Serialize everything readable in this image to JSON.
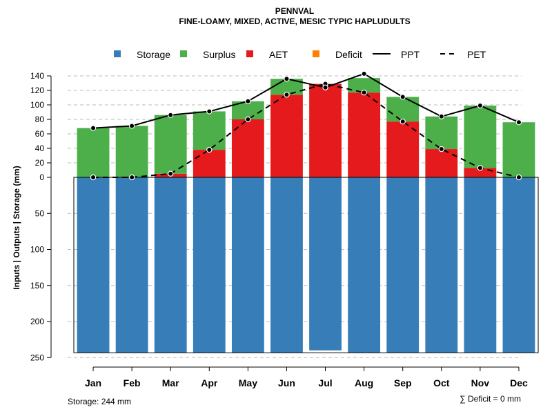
{
  "chart_data": {
    "type": "bar",
    "title": "PENNVAL",
    "subtitle": "FINE-LOAMY, MIXED, ACTIVE, MESIC TYPIC HAPLUDULTS",
    "ylabel": "Inputs | Outputs | Storage    (mm)",
    "categories": [
      "Jan",
      "Feb",
      "Mar",
      "Apr",
      "May",
      "Jun",
      "Jul",
      "Aug",
      "Sep",
      "Oct",
      "Nov",
      "Dec"
    ],
    "upper_ticks": [
      "140",
      "120",
      "100",
      "80",
      "60",
      "40",
      "20",
      "0"
    ],
    "upper_tick_values": [
      140,
      120,
      100,
      80,
      60,
      40,
      20,
      0
    ],
    "lower_ticks": [
      "50",
      "100",
      "150",
      "200",
      "250"
    ],
    "lower_tick_values": [
      50,
      100,
      150,
      200,
      250
    ],
    "upper_ylim": [
      0,
      140
    ],
    "lower_ylim": [
      0,
      250
    ],
    "colors": {
      "storage": "#377eb8",
      "surplus": "#4daf4a",
      "aet": "#e41a1c",
      "deficit": "#ff7f00",
      "ppt": "#000000",
      "pet": "#000000",
      "grid": "#bbbbbb"
    },
    "legend": {
      "storage": "Storage",
      "surplus": "Surplus",
      "aet": "AET",
      "deficit": "Deficit",
      "ppt": "PPT",
      "pet": "PET"
    },
    "series": [
      {
        "name": "Storage",
        "values": [
          244,
          244,
          244,
          244,
          244,
          244,
          240,
          244,
          244,
          244,
          244,
          244
        ]
      },
      {
        "name": "AET",
        "values": [
          0,
          0,
          5,
          38,
          80,
          114,
          129,
          117,
          77,
          39,
          13,
          0
        ]
      },
      {
        "name": "Surplus",
        "values": [
          68,
          71,
          81,
          53,
          25,
          22,
          0,
          20,
          34,
          45,
          86,
          76
        ]
      },
      {
        "name": "Deficit",
        "values": [
          0,
          0,
          0,
          0,
          0,
          0,
          0,
          0,
          0,
          0,
          0,
          0
        ]
      },
      {
        "name": "PPT",
        "values": [
          68,
          71,
          86,
          91,
          105,
          136,
          124,
          143,
          111,
          84,
          99,
          76
        ]
      },
      {
        "name": "PET",
        "values": [
          0,
          0,
          5,
          38,
          80,
          114,
          129,
          117,
          77,
          39,
          13,
          0
        ]
      }
    ],
    "footer_left": "Storage: 244 mm",
    "footer_right": "∑ Deficit = 0 mm"
  }
}
